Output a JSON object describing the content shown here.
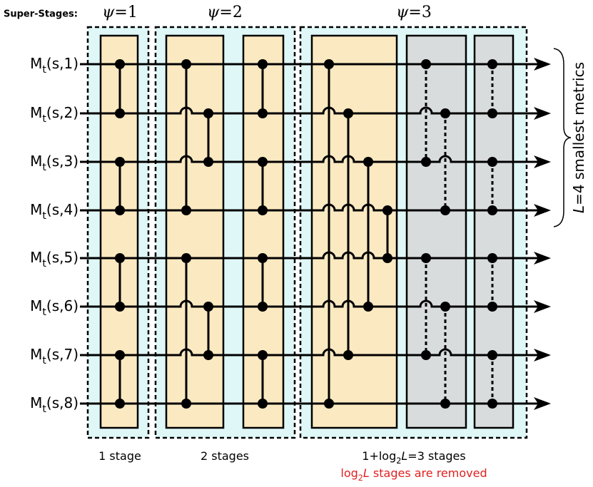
{
  "header": {
    "label": "Super-Stages:"
  },
  "super_stages": [
    {
      "label": [
        {
          "text": "ψ",
          "italic": true
        },
        {
          "text": "=1"
        }
      ],
      "caption": [
        {
          "text": "1 stage"
        }
      ]
    },
    {
      "label": [
        {
          "text": "ψ",
          "italic": true
        },
        {
          "text": "=2"
        }
      ],
      "caption": [
        {
          "text": "2 stages"
        }
      ]
    },
    {
      "label": [
        {
          "text": "ψ",
          "italic": true
        },
        {
          "text": "=3"
        }
      ],
      "caption": [
        {
          "text": "1+log"
        },
        {
          "text": "2",
          "sub": true
        },
        {
          "text": "L",
          "italic": true
        },
        {
          "text": "=3 stages"
        }
      ],
      "note": [
        {
          "text": "log"
        },
        {
          "text": "2",
          "sub": true
        },
        {
          "text": "L",
          "italic": true
        },
        {
          "text": " stages are removed"
        }
      ]
    }
  ],
  "rows": [
    [
      {
        "text": "M"
      },
      {
        "text": "t",
        "sub": true
      },
      {
        "text": "(s,1)"
      }
    ],
    [
      {
        "text": "M"
      },
      {
        "text": "t",
        "sub": true
      },
      {
        "text": "(s,2)"
      }
    ],
    [
      {
        "text": "M"
      },
      {
        "text": "t",
        "sub": true
      },
      {
        "text": "(s,3)"
      }
    ],
    [
      {
        "text": "M"
      },
      {
        "text": "t",
        "sub": true
      },
      {
        "text": "(s,4)"
      }
    ],
    [
      {
        "text": "M"
      },
      {
        "text": "t",
        "sub": true
      },
      {
        "text": "(s,5)"
      }
    ],
    [
      {
        "text": "M"
      },
      {
        "text": "t",
        "sub": true
      },
      {
        "text": "(s,6)"
      }
    ],
    [
      {
        "text": "M"
      },
      {
        "text": "t",
        "sub": true
      },
      {
        "text": "(s,7)"
      }
    ],
    [
      {
        "text": "M"
      },
      {
        "text": "t",
        "sub": true
      },
      {
        "text": "(s,8)"
      }
    ]
  ],
  "side_note": [
    {
      "text": "L",
      "italic": true
    },
    {
      "text": "=4 smallest metrics"
    }
  ]
}
